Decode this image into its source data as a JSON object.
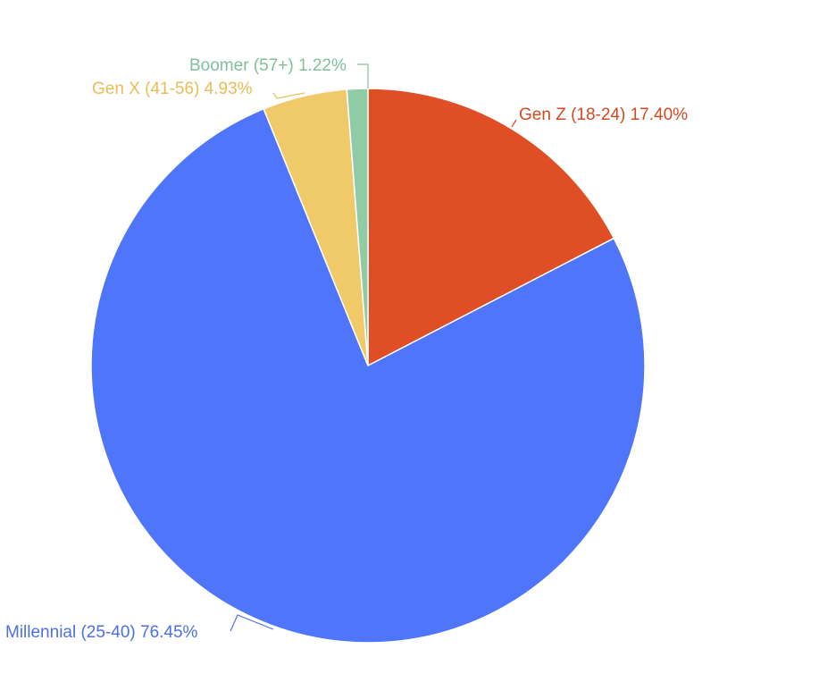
{
  "chart_data": {
    "type": "pie",
    "title": "",
    "start_angle_deg": 0,
    "direction": "clockwise",
    "slices": [
      {
        "label": "Gen Z (18-24) 17.40%",
        "name": "Gen Z (18-24)",
        "value": 17.4,
        "color": "#E04E25"
      },
      {
        "label": "Millennial (25-40) 76.45%",
        "name": "Millennial (25-40)",
        "value": 76.45,
        "color": "#4E75FA"
      },
      {
        "label": "Gen X (41-56) 4.93%",
        "name": "Gen X (41-56)",
        "value": 4.93,
        "color": "#F0C968"
      },
      {
        "label": "Boomer (57+) 1.22%",
        "name": "Boomer (57+)",
        "value": 1.22,
        "color": "#8FCCA6"
      }
    ],
    "label_colors": [
      "#D24A22",
      "#4C6FE6",
      "#E8BD55",
      "#7FC09A"
    ],
    "legend": "none"
  }
}
